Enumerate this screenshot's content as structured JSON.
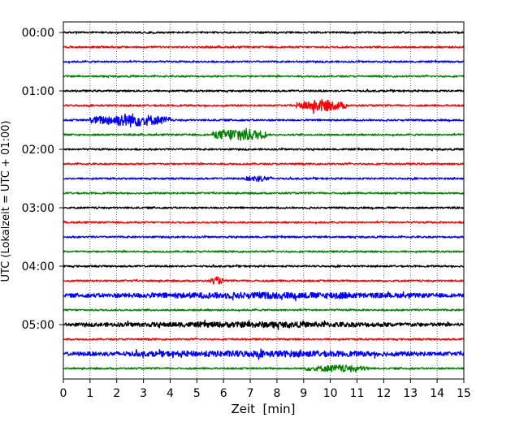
{
  "chart_data": {
    "type": "line",
    "title": "",
    "xlabel": "Zeit  [min]",
    "ylabel": "UTC (Lokalzeit = UTC + 01:00)",
    "xlim": [
      0,
      15
    ],
    "x_ticks": [
      "0",
      "1",
      "2",
      "3",
      "4",
      "5",
      "6",
      "7",
      "8",
      "9",
      "10",
      "11",
      "12",
      "13",
      "14",
      "15"
    ],
    "y_ticks": [
      "00:00",
      "01:00",
      "02:00",
      "03:00",
      "04:00",
      "05:00"
    ],
    "grid": "vertical dotted at each minute",
    "trace_colors": [
      "#000000",
      "#ff0000",
      "#0000ff",
      "#008000"
    ],
    "rows": 24,
    "rows_per_hour": 4,
    "events": [
      {
        "row": 5,
        "start_min": 8.7,
        "end_min": 10.6,
        "amplitude": 0.75
      },
      {
        "row": 6,
        "start_min": 1.0,
        "end_min": 4.0,
        "amplitude": 0.85
      },
      {
        "row": 7,
        "start_min": 5.6,
        "end_min": 7.6,
        "amplitude": 0.9
      },
      {
        "row": 10,
        "start_min": 6.8,
        "end_min": 7.8,
        "amplitude": 0.35
      },
      {
        "row": 17,
        "start_min": 5.5,
        "end_min": 6.0,
        "amplitude": 0.45
      },
      {
        "row": 18,
        "start_min": 0.0,
        "end_min": 15.0,
        "amplitude": 0.35
      },
      {
        "row": 18,
        "start_min": 9.5,
        "end_min": 11.0,
        "amplitude": 0.45
      },
      {
        "row": 20,
        "start_min": 0.0,
        "end_min": 15.0,
        "amplitude": 0.3
      },
      {
        "row": 22,
        "start_min": 0.0,
        "end_min": 15.0,
        "amplitude": 0.35
      },
      {
        "row": 23,
        "start_min": 9.0,
        "end_min": 11.5,
        "amplitude": 0.4
      }
    ]
  }
}
